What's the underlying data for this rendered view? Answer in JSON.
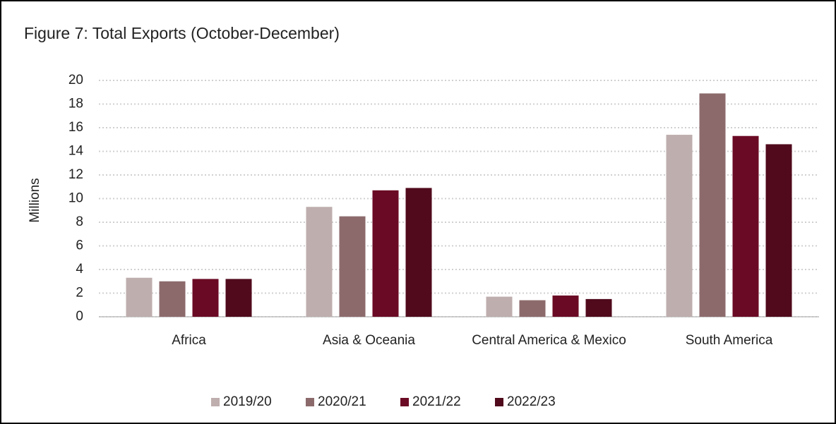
{
  "chart_data": {
    "type": "bar",
    "title": "Figure 7: Total Exports (October-December)",
    "y_label": "Millions",
    "categories": [
      "Africa",
      "Asia & Oceania",
      "Central America & Mexico",
      "South America"
    ],
    "series": [
      {
        "name": "2019/20",
        "color": "#bfaeae",
        "values": [
          3.3,
          9.3,
          1.7,
          15.4
        ]
      },
      {
        "name": "2020/21",
        "color": "#8c6a6c",
        "values": [
          3.0,
          8.5,
          1.4,
          18.9
        ]
      },
      {
        "name": "2021/22",
        "color": "#6b0a24",
        "values": [
          3.2,
          10.7,
          1.8,
          15.3
        ]
      },
      {
        "name": "2022/23",
        "color": "#500a1c",
        "values": [
          3.2,
          10.9,
          1.5,
          14.6
        ]
      }
    ],
    "ylim": [
      0,
      20
    ],
    "yticks": [
      0,
      2,
      4,
      6,
      8,
      10,
      12,
      14,
      16,
      18,
      20
    ],
    "grid": true,
    "legend": "bottom"
  }
}
